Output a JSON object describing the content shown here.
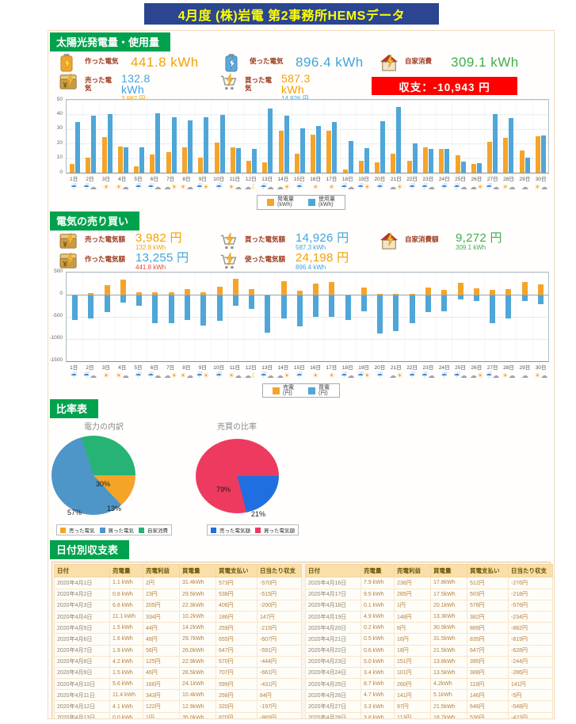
{
  "title": "4月度 (株)岩電 第2事務所HEMSデータ",
  "sections": {
    "solar": {
      "header": "太陽光発電量・使用量"
    },
    "trade": {
      "header": "電気の売り買い"
    },
    "ratio": {
      "header": "比率表"
    },
    "daily": {
      "header": "日付別収支表"
    }
  },
  "solar_stats": {
    "made": {
      "icon": "battery-orange-icon",
      "label": "作った電気",
      "value": "441.8 kWh",
      "color": "#F5A000"
    },
    "used": {
      "icon": "battery-blue-icon",
      "label": "使った電気",
      "value": "896.4 kWh",
      "color": "#41A4DC"
    },
    "self": {
      "icon": "house-bolt-icon",
      "label": "自家消費",
      "value": "309.1 kWh",
      "color": "#3FAE49"
    },
    "sold": {
      "icon": "yen-box-icon",
      "label": "売った電気",
      "value": "132.8 kWh",
      "sub": "3,982 円",
      "color": "#41A4DC",
      "sub_color": "#F5A000"
    },
    "bought": {
      "icon": "cart-bolt-icon",
      "label": "買った電気",
      "value": "587.3 kWh",
      "sub": "14,926 円",
      "color": "#F5A000",
      "sub_color": "#41A4DC"
    },
    "balance_badge": {
      "label": "収支：-10,943 円",
      "bg": "#FF0000"
    }
  },
  "trade_stats": {
    "sold": {
      "icon": "yen-box-icon",
      "label": "売った電気額",
      "value": "3,982 円",
      "sub": "132.8 kWh",
      "color": "#F5A000",
      "sub_color": "#F5A000"
    },
    "bought": {
      "icon": "cart-bolt-icon",
      "label": "買った電気額",
      "value": "14,926 円",
      "sub": "587.3 kWh",
      "color": "#41A4DC",
      "sub_color": "#41A4DC"
    },
    "self": {
      "icon": "house-bolt-icon",
      "label": "自家消費額",
      "value": "9,272 円",
      "sub": "309.1 kWh",
      "color": "#3FAE49",
      "sub_color": "#3FAE49"
    },
    "made": {
      "icon": "yen-box-icon",
      "label": "作った電気額",
      "value": "13,255 円",
      "sub": "441.8 kWh",
      "color": "#41A4DC",
      "sub_color": "#E04B3A"
    },
    "used": {
      "icon": "cart-bolt-icon",
      "label": "使った電気額",
      "value": "24,198 円",
      "sub": "896.4 kWh",
      "color": "#F5A000",
      "sub_color": "#41A4DC"
    }
  },
  "chart_data": [
    {
      "type": "bar",
      "title": "太陽光発電量・使用量（日別）",
      "categories": [
        "1日",
        "2日",
        "3日",
        "4日",
        "5日",
        "6日",
        "7日",
        "8日",
        "9日",
        "10日",
        "11日",
        "12日",
        "13日",
        "14日",
        "15日",
        "16日",
        "17日",
        "18日",
        "19日",
        "20日",
        "21日",
        "22日",
        "23日",
        "24日",
        "25日",
        "26日",
        "27日",
        "28日",
        "29日",
        "30日"
      ],
      "series": [
        {
          "name": "発電量",
          "unit": "(kWh)",
          "color": "#F5A42A",
          "values": [
            6,
            10.5,
            24.5,
            18,
            4.5,
            12.5,
            14,
            17.5,
            10.5,
            20.5,
            17.5,
            8,
            7,
            29,
            13,
            26,
            29,
            2,
            8,
            7,
            13,
            8,
            17.5,
            16.5,
            12,
            6,
            21,
            24,
            15,
            25
          ]
        },
        {
          "name": "使用量",
          "unit": "(kWh)",
          "color": "#4FA6D8",
          "values": [
            35,
            39,
            40,
            17.5,
            17.5,
            40.5,
            38,
            36,
            38,
            39.5,
            17,
            16.5,
            44,
            39,
            30.5,
            32,
            35,
            22,
            17,
            35.5,
            45,
            20,
            16.5,
            16.5,
            7.5,
            6.5,
            40,
            37.5,
            10.5,
            25.5
          ]
        }
      ],
      "ylim": [
        0,
        50
      ],
      "yticks": [
        0,
        10,
        20,
        30,
        40,
        50
      ],
      "grid": true,
      "legend_position": "bottom",
      "weather": [
        "rain",
        "rain-cloud",
        "sun",
        "sun-cloud",
        "rain",
        "rain-cloud",
        "cloud-sun",
        "sun-cloud",
        "rain-sun",
        "rain",
        "sun-cloud",
        "cloud-moon",
        "rain-cloud",
        "cloud-sun",
        "rain",
        "sun",
        "sun",
        "rain-cloud",
        "rain-sun",
        "rain",
        "cloud-sun",
        "rain",
        "rain-cloud",
        "rain",
        "rain-cloud",
        "cloud-sun",
        "rain-cloud",
        "sun-cloud",
        "cloud",
        "sun-cloud"
      ]
    },
    {
      "type": "bar",
      "title": "電気の売り買い（日別・円）",
      "categories": [
        "1日",
        "2日",
        "3日",
        "4日",
        "5日",
        "6日",
        "7日",
        "8日",
        "9日",
        "10日",
        "11日",
        "12日",
        "13日",
        "14日",
        "15日",
        "16日",
        "17日",
        "18日",
        "19日",
        "20日",
        "21日",
        "22日",
        "23日",
        "24日",
        "25日",
        "26日",
        "27日",
        "28日",
        "29日",
        "30日"
      ],
      "series": [
        {
          "name": "売電",
          "unit": "(円)",
          "color": "#F5A42A",
          "values": [
            2,
            23,
            205,
            334,
            44,
            48,
            56,
            125,
            46,
            166,
            343,
            122,
            1,
            291,
            85,
            236,
            285,
            1,
            148,
            6,
            16,
            18,
            151,
            101,
            260,
            141,
            97,
            113,
            288,
            222
          ]
        },
        {
          "name": "買電",
          "unit": "(円)",
          "color": "#4FA6D8",
          "values": [
            -573,
            -538,
            -406,
            -186,
            -259,
            -655,
            -647,
            -570,
            -707,
            -599,
            -258,
            -320,
            -870,
            -547,
            -724,
            -512,
            -503,
            -578,
            -382,
            -889,
            -835,
            -647,
            -395,
            -388,
            -119,
            -146,
            -646,
            -536,
            -152,
            -228
          ]
        }
      ],
      "ylim": [
        -1500,
        500
      ],
      "yticks": [
        500,
        0,
        -500,
        -1000,
        -1500
      ],
      "grid": true,
      "legend_position": "bottom",
      "weather": [
        "rain",
        "rain-cloud",
        "sun",
        "sun-cloud",
        "rain",
        "rain-cloud",
        "cloud-sun",
        "sun-cloud",
        "rain-sun",
        "rain",
        "sun-cloud",
        "cloud-moon",
        "rain-cloud",
        "cloud-sun",
        "rain",
        "sun",
        "sun",
        "rain-cloud",
        "rain-sun",
        "rain",
        "cloud-sun",
        "rain",
        "rain-cloud",
        "rain",
        "rain-cloud",
        "cloud-sun",
        "rain-cloud",
        "sun-cloud",
        "cloud",
        "sun-cloud"
      ]
    },
    {
      "type": "pie",
      "title": "電力の内訳",
      "slices": [
        {
          "label": "売った電気",
          "pct": 13,
          "pct_label": "13%",
          "color": "#F5A42A"
        },
        {
          "label": "買った電気",
          "pct": 57,
          "pct_label": "57%",
          "color": "#4E96C8"
        },
        {
          "label": "自家消費",
          "pct": 30,
          "pct_label": "30%",
          "color": "#27B376"
        }
      ]
    },
    {
      "type": "pie",
      "title": "売買の比率",
      "slices": [
        {
          "label": "売った電気額",
          "pct": 21,
          "pct_label": "21%",
          "color": "#1F6FE0"
        },
        {
          "label": "買った電気額",
          "pct": 79,
          "pct_label": "79%",
          "color": "#EE3A5F"
        }
      ]
    }
  ],
  "table": {
    "columns": [
      "日付",
      "売電量",
      "売電利益",
      "買電量",
      "買電支払い",
      "日当たり収支"
    ],
    "rows_left": [
      [
        "2020年4月1日",
        "1.1 kWh",
        "2円",
        "31.4kWh",
        "573円",
        "-570円"
      ],
      [
        "2020年4月2日",
        "0.8 kWh",
        "23円",
        "29.5kWh",
        "538円",
        "-515円"
      ],
      [
        "2020年4月3日",
        "6.8 kWh",
        "205円",
        "22.3kWh",
        "406円",
        "-200円"
      ],
      [
        "2020年4月4日",
        "11.1 kWh",
        "334円",
        "10.2kWh",
        "186円",
        "147円"
      ],
      [
        "2020年4月5日",
        "1.5 kWh",
        "44円",
        "14.2kWh",
        "259円",
        "-215円"
      ],
      [
        "2020年4月6日",
        "1.6 kWh",
        "48円",
        "29.7kWh",
        "655円",
        "-607円"
      ],
      [
        "2020年4月7日",
        "1.9 kWh",
        "56円",
        "26.0kWh",
        "647円",
        "-591円"
      ],
      [
        "2020年4月8日",
        "4.2 kWh",
        "125円",
        "22.9kWh",
        "570円",
        "-444円"
      ],
      [
        "2020年4月9日",
        "1.5 kWh",
        "46円",
        "28.5kWh",
        "707円",
        "-661円"
      ],
      [
        "2020年4月10日",
        "5.6 kWh",
        "166円",
        "24.1kWh",
        "599円",
        "-431円"
      ],
      [
        "2020年4月11日",
        "11.4 kWh",
        "343円",
        "10.4kWh",
        "258円",
        "84円"
      ],
      [
        "2020年4月12日",
        "4.1 kWh",
        "122円",
        "12.9kWh",
        "320円",
        "-197円"
      ],
      [
        "2020年4月13日",
        "0.0 kWh",
        "1円",
        "35.0kWh",
        "870円",
        "-869円"
      ],
      [
        "2020年4月14日",
        "9.7 kWh",
        "291円",
        "19.4kWh",
        "547円",
        "-256円"
      ],
      [
        "2020年4月15日",
        "2.8 kWh",
        "85円",
        "25.2kWh",
        "724円",
        "-639円"
      ]
    ],
    "rows_right": [
      [
        "2020年4月16日",
        "7.9 kWh",
        "236円",
        "17.8kWh",
        "512円",
        "-276円"
      ],
      [
        "2020年4月17日",
        "9.5 kWh",
        "285円",
        "17.5kWh",
        "503円",
        "-218円"
      ],
      [
        "2020年4月18日",
        "0.1 kWh",
        "1円",
        "20.1kWh",
        "578円",
        "-576円"
      ],
      [
        "2020年4月19日",
        "4.9 kWh",
        "148円",
        "13.3kWh",
        "382円",
        "-234円"
      ],
      [
        "2020年4月20日",
        "0.2 kWh",
        "6円",
        "30.9kWh",
        "889円",
        "-882円"
      ],
      [
        "2020年4月21日",
        "0.5 kWh",
        "16円",
        "31.5kWh",
        "835円",
        "-819円"
      ],
      [
        "2020年4月22日",
        "0.6 kWh",
        "18円",
        "21.5kWh",
        "647円",
        "-628円"
      ],
      [
        "2020年4月23日",
        "5.0 kWh",
        "151円",
        "13.8kWh",
        "395円",
        "-244円"
      ],
      [
        "2020年4月24日",
        "3.4 kWh",
        "101円",
        "13.5kWh",
        "388円",
        "-286円"
      ],
      [
        "2020年4月25日",
        "8.7 kWh",
        "260円",
        "4.2kWh",
        "119円",
        "141円"
      ],
      [
        "2020年4月26日",
        "4.7 kWh",
        "141円",
        "5.1kWh",
        "146円",
        "-5円"
      ],
      [
        "2020年4月27日",
        "3.3 kWh",
        "97円",
        "21.5kWh",
        "646円",
        "-548円"
      ],
      [
        "2020年4月28日",
        "3.8 kWh",
        "113円",
        "18.7kWh",
        "536円",
        "-423円"
      ],
      [
        "2020年4月29日",
        "9.6 kWh",
        "288円",
        "5.2kWh",
        "152円",
        "136円"
      ],
      [
        "2020年4月30日",
        "7.4 kWh",
        "222円",
        "7.9kWh",
        "228円",
        "-5円"
      ]
    ]
  },
  "colors": {
    "header_green": "#00A24D",
    "title_navy": "#2B4590",
    "title_yellow": "#FFFF00",
    "balance_red": "#FF0000",
    "orange": "#F5A42A",
    "blue": "#4FA6D8",
    "green": "#3FAE49"
  }
}
